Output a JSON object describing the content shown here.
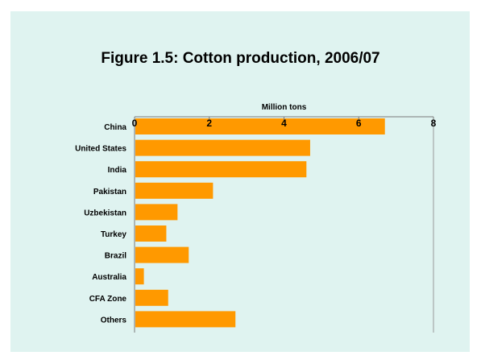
{
  "chart_data": {
    "type": "bar",
    "orientation": "horizontal",
    "title": "Figure 1.5: Cotton production, 2006/07",
    "xlabel": "Million tons",
    "xlim": [
      0,
      8
    ],
    "xticks": [
      "0",
      "2",
      "4",
      "6",
      "8"
    ],
    "categories": [
      "China",
      "United States",
      "India",
      "Pakistan",
      "Uzbekistan",
      "Turkey",
      "Brazil",
      "Australia",
      "CFA Zone",
      "Others"
    ],
    "values": [
      6.7,
      4.7,
      4.6,
      2.1,
      1.15,
      0.85,
      1.45,
      0.25,
      0.9,
      2.7
    ],
    "bar_color": "#ff9900",
    "background_color": "#dff3f0",
    "grid": false
  }
}
